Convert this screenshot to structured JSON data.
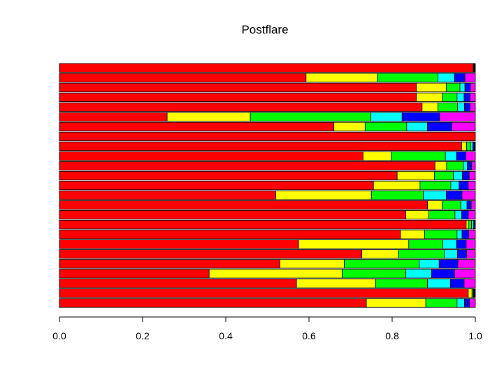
{
  "chart_data": {
    "type": "bar",
    "orientation": "horizontal",
    "stacked": true,
    "title": "Postflare",
    "xlim": [
      0,
      1
    ],
    "x_ticks": [
      0,
      0.2,
      0.4,
      0.6,
      0.8,
      1
    ],
    "x_tick_labels": [
      "0.0",
      "0.2",
      "0.4",
      "0.6",
      "0.8",
      "1.0"
    ],
    "grid": false,
    "legend": "none",
    "segment_colors": [
      "#ff0000",
      "#ffff00",
      "#00ff00",
      "#00ffff",
      "#0000ff",
      "#ff00ff",
      "#000000"
    ],
    "bars_top_to_bottom": [
      [
        0.995,
        0,
        0,
        0,
        0,
        0,
        0.005
      ],
      [
        0.593,
        0.172,
        0.145,
        0.04,
        0.025,
        0.025,
        0
      ],
      [
        0.858,
        0.072,
        0.033,
        0.012,
        0.013,
        0.012,
        0
      ],
      [
        0.858,
        0.063,
        0.035,
        0.017,
        0.014,
        0.013,
        0
      ],
      [
        0.872,
        0.038,
        0.047,
        0.017,
        0.013,
        0.013,
        0
      ],
      [
        0.259,
        0.2,
        0.29,
        0.075,
        0.09,
        0.086,
        0
      ],
      [
        0.66,
        0.075,
        0.1,
        0.05,
        0.058,
        0.057,
        0
      ],
      [
        1.0,
        0,
        0,
        0,
        0,
        0,
        0
      ],
      [
        0.967,
        0.012,
        0.01,
        0.005,
        0.003,
        0,
        0.003
      ],
      [
        0.73,
        0.068,
        0.13,
        0.027,
        0.022,
        0.023,
        0
      ],
      [
        0.903,
        0.028,
        0.04,
        0.01,
        0.01,
        0.009,
        0
      ],
      [
        0.812,
        0.09,
        0.045,
        0.022,
        0.016,
        0.015,
        0
      ],
      [
        0.755,
        0.112,
        0.074,
        0.02,
        0.022,
        0.017,
        0
      ],
      [
        0.52,
        0.23,
        0.125,
        0.055,
        0.038,
        0.032,
        0
      ],
      [
        0.885,
        0.035,
        0.045,
        0.015,
        0.01,
        0.01,
        0
      ],
      [
        0.833,
        0.055,
        0.063,
        0.016,
        0.016,
        0.017,
        0
      ],
      [
        0.978,
        0.005,
        0.008,
        0.005,
        0.002,
        0,
        0.002
      ],
      [
        0.82,
        0.058,
        0.078,
        0.012,
        0.016,
        0.016,
        0
      ],
      [
        0.575,
        0.265,
        0.082,
        0.033,
        0.023,
        0.022,
        0
      ],
      [
        0.727,
        0.088,
        0.11,
        0.032,
        0.022,
        0.021,
        0
      ],
      [
        0.53,
        0.155,
        0.18,
        0.048,
        0.045,
        0.042,
        0
      ],
      [
        0.36,
        0.32,
        0.153,
        0.062,
        0.055,
        0.05,
        0
      ],
      [
        0.57,
        0.19,
        0.125,
        0.055,
        0.033,
        0.027,
        0
      ],
      [
        0.983,
        0.009,
        0.003,
        0,
        0,
        0,
        0.005
      ],
      [
        0.738,
        0.143,
        0.075,
        0.018,
        0.012,
        0.014,
        0
      ]
    ]
  }
}
